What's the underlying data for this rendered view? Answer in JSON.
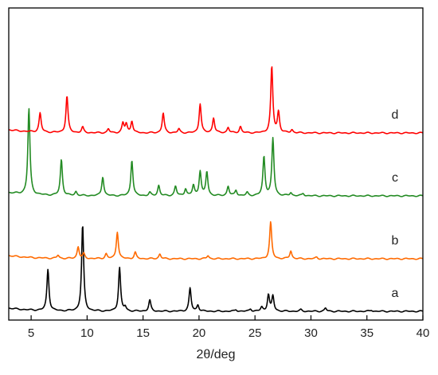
{
  "chart_data": {
    "type": "line",
    "title": "",
    "xlabel": "2θ/deg",
    "ylabel": "",
    "xlim": [
      3,
      40
    ],
    "x_ticks": [
      5,
      10,
      15,
      20,
      25,
      30,
      35,
      40
    ],
    "y_ticks": false,
    "grid": false,
    "series": [
      {
        "name": "a",
        "color": "#000000",
        "baseline": 0,
        "end_level": 0,
        "peaks": [
          [
            6.5,
            52
          ],
          [
            9.6,
            108
          ],
          [
            12.9,
            55
          ],
          [
            13.4,
            5
          ],
          [
            15.6,
            14
          ],
          [
            19.2,
            29
          ],
          [
            19.9,
            8
          ],
          [
            23.3,
            2
          ],
          [
            24.6,
            3
          ],
          [
            25.6,
            5
          ],
          [
            26.2,
            21
          ],
          [
            26.6,
            19
          ],
          [
            29.1,
            2
          ],
          [
            31.3,
            4
          ],
          [
            35.4,
            1.5
          ]
        ]
      },
      {
        "name": "b",
        "color": "#ff6a00",
        "baseline": 28,
        "end_level": 34,
        "peaks": [
          [
            7.4,
            4
          ],
          [
            9.2,
            15
          ],
          [
            9.7,
            6
          ],
          [
            11.7,
            6
          ],
          [
            12.7,
            34
          ],
          [
            14.3,
            8
          ],
          [
            16.5,
            6
          ],
          [
            20.8,
            4
          ],
          [
            26.4,
            46
          ],
          [
            28.2,
            10
          ],
          [
            30.5,
            2
          ]
        ]
      },
      {
        "name": "c",
        "color": "#238b23",
        "baseline": 75,
        "end_level": 72,
        "peaks": [
          [
            4.8,
            108
          ],
          [
            7.7,
            45
          ],
          [
            9.0,
            5
          ],
          [
            11.4,
            24
          ],
          [
            14.0,
            45
          ],
          [
            15.6,
            4
          ],
          [
            16.4,
            13
          ],
          [
            17.9,
            12
          ],
          [
            18.8,
            9
          ],
          [
            19.5,
            13
          ],
          [
            20.1,
            31
          ],
          [
            20.7,
            30
          ],
          [
            22.6,
            12
          ],
          [
            23.3,
            7
          ],
          [
            24.3,
            4
          ],
          [
            25.8,
            49
          ],
          [
            26.6,
            72
          ],
          [
            28.2,
            4
          ],
          [
            29.3,
            3
          ]
        ]
      },
      {
        "name": "d",
        "color": "#ff0000",
        "baseline": 136,
        "end_level": 122,
        "peaks": [
          [
            5.8,
            24
          ],
          [
            8.2,
            46
          ],
          [
            9.6,
            7
          ],
          [
            11.9,
            5
          ],
          [
            13.2,
            12
          ],
          [
            13.5,
            11
          ],
          [
            14.0,
            15
          ],
          [
            16.8,
            25
          ],
          [
            18.2,
            5
          ],
          [
            20.1,
            37
          ],
          [
            21.3,
            19
          ],
          [
            22.6,
            7
          ],
          [
            23.7,
            8
          ],
          [
            26.5,
            83
          ],
          [
            27.1,
            26
          ],
          [
            28.3,
            4
          ]
        ]
      }
    ]
  }
}
